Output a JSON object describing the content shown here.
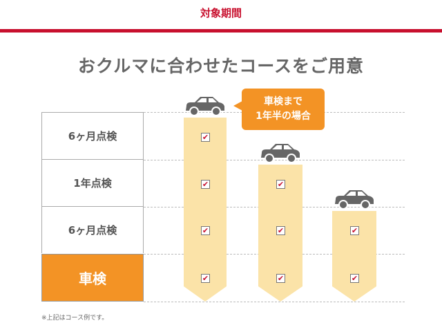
{
  "header": {
    "title": "対象期間"
  },
  "main": {
    "title": "おクルマに合わせたコースをご用意"
  },
  "rows": [
    {
      "label": "6ヶ月点検"
    },
    {
      "label": "1年点検"
    },
    {
      "label": "6ヶ月点検"
    },
    {
      "label": "車検"
    }
  ],
  "callout": {
    "line1": "車検まで",
    "line2": "1年半の場合"
  },
  "note": "※上記はコース例です。",
  "colors": {
    "accent_red": "#c8102e",
    "orange": "#f39325",
    "column": "#fbe3a8",
    "text_gray": "#666666"
  },
  "courses": [
    {
      "checked": [
        "6ヶ月点検",
        "1年点検",
        "6ヶ月点検",
        "車検"
      ]
    },
    {
      "checked": [
        "1年点検",
        "6ヶ月点検",
        "車検"
      ]
    },
    {
      "checked": [
        "6ヶ月点検",
        "車検"
      ]
    }
  ]
}
